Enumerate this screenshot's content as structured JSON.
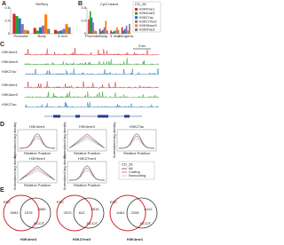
{
  "panels": {
    "a": {
      "label": "A",
      "title": "RefSeq",
      "categories": [
        "Promoter",
        "Body",
        "3' end"
      ],
      "ylim": [
        0,
        0.8
      ],
      "yticks": [
        0,
        0.4,
        0.8
      ],
      "values": [
        [
          0.62,
          0.18,
          0.12
        ],
        [
          0.55,
          0.1,
          0.08
        ],
        [
          0.48,
          0.2,
          0.1
        ],
        [
          0.3,
          0.25,
          0.15
        ],
        [
          0.12,
          0.6,
          0.3
        ],
        [
          0.1,
          0.15,
          0.2
        ]
      ]
    },
    "b": {
      "label": "B",
      "title": "CpG island",
      "categories": [
        "Promoter",
        "Body",
        "3' end",
        "Intergenic"
      ],
      "ylim": [
        0,
        0.8
      ],
      "yticks": [
        0,
        0.4,
        0.8
      ],
      "values": [
        [
          0.45,
          0.15,
          0.1,
          0.2
        ],
        [
          0.7,
          0.08,
          0.05,
          0.1
        ],
        [
          0.5,
          0.12,
          0.08,
          0.15
        ],
        [
          0.35,
          0.2,
          0.1,
          0.25
        ],
        [
          0.1,
          0.4,
          0.2,
          0.1
        ],
        [
          0.08,
          0.1,
          0.12,
          0.3
        ]
      ]
    },
    "legend": {
      "title": "CD_28",
      "series": [
        {
          "name": "H3K4me1",
          "color": "#d62728"
        },
        {
          "name": "H3K4me3",
          "color": "#2ca02c"
        },
        {
          "name": "H3K27ac",
          "color": "#1f77b4"
        },
        {
          "name": "H3K27me3",
          "color": "#9467bd"
        },
        {
          "name": "H3K36me3",
          "color": "#ff7f0e"
        },
        {
          "name": "H3K9me3",
          "color": "#7f7f7f"
        }
      ]
    },
    "c": {
      "label": "C",
      "tracks": [
        "H3K4me1",
        "H3K4me3",
        "H3K27ac",
        "H3K4me1",
        "H3K4me3",
        "H3K27ac"
      ],
      "scale": "5 kb"
    },
    "d": {
      "label": "D",
      "plots": [
        "H3K4me1",
        "H3K4me3",
        "H3K27ac",
        "H3K9me3",
        "H3K27me3"
      ],
      "xlabel": "Relative Position",
      "ylabel": "Normalized tag density",
      "legend": {
        "title": "CD_28",
        "items": [
          "All",
          "Coding",
          "Noncoding"
        ]
      }
    },
    "e": {
      "label": "E",
      "venns": [
        {
          "left": "ESC",
          "right": "NCCIT",
          "left_only": "9053",
          "overlap": "1576",
          "right_only": "3065",
          "caption": "H3K4me3"
        },
        {
          "left": "ESC",
          "right": "NCCIT",
          "left_only": "2570",
          "overlap": "812",
          "right_only": "8515",
          "caption": "H3K27me3"
        },
        {
          "left": "ESC",
          "right": "NCCIT",
          "left_only": "6461",
          "overlap": "2208",
          "right_only": "4412",
          "caption": "H3K4me1"
        }
      ]
    }
  }
}
